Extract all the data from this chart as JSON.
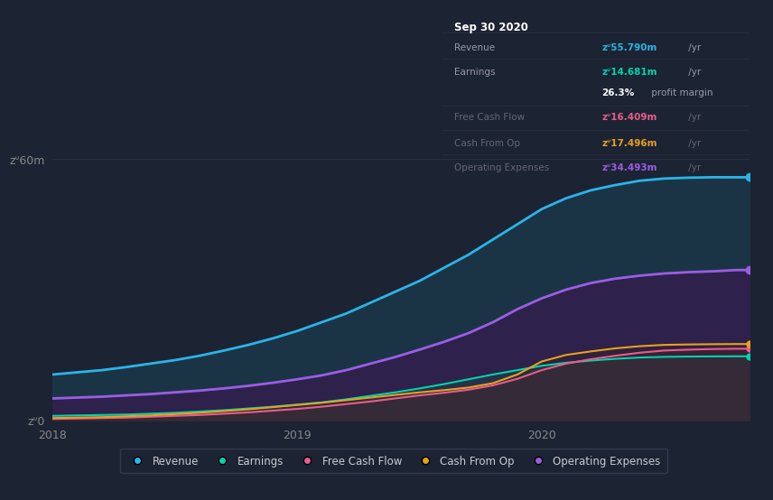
{
  "background_color": "#1c2333",
  "plot_bg_color": "#1c2333",
  "x_ticks_labels": [
    "2018",
    "2019",
    "2020"
  ],
  "x_ticks_pos": [
    0.0,
    1.0,
    2.0
  ],
  "ylabel_60": "zᐡ60m",
  "ylabel_0": "zᐡ0",
  "legend_items": [
    {
      "label": "Revenue",
      "color": "#29b5e8"
    },
    {
      "label": "Earnings",
      "color": "#00d4aa"
    },
    {
      "label": "Free Cash Flow",
      "color": "#e85d8a"
    },
    {
      "label": "Cash From Op",
      "color": "#e8a020"
    },
    {
      "label": "Operating Expenses",
      "color": "#9b5de5"
    }
  ],
  "tooltip_title": "Sep 30 2020",
  "tooltip_rows": [
    {
      "label": "Revenue",
      "value": "zᐡ55.790m",
      "suffix": " /yr",
      "value_color": "#29b5e8",
      "dim": false
    },
    {
      "label": "Earnings",
      "value": "zᐡ14.681m",
      "suffix": " /yr",
      "value_color": "#00d4aa",
      "dim": false
    },
    {
      "label": "",
      "value": "26.3%",
      "suffix": " profit margin",
      "value_color": "#ffffff",
      "dim": false
    },
    {
      "label": "Free Cash Flow",
      "value": "zᐡ16.409m",
      "suffix": " /yr",
      "value_color": "#e85d8a",
      "dim": true
    },
    {
      "label": "Cash From Op",
      "value": "zᐡ17.496m",
      "suffix": " /yr",
      "value_color": "#e8a020",
      "dim": true
    },
    {
      "label": "Operating Expenses",
      "value": "zᐡ34.493m",
      "suffix": " /yr",
      "value_color": "#9b5de5",
      "dim": true
    }
  ],
  "x_data": [
    0.0,
    0.1,
    0.2,
    0.3,
    0.4,
    0.5,
    0.6,
    0.7,
    0.8,
    0.9,
    1.0,
    1.1,
    1.2,
    1.3,
    1.4,
    1.5,
    1.6,
    1.7,
    1.8,
    1.9,
    2.0,
    2.1,
    2.2,
    2.3,
    2.4,
    2.5,
    2.6,
    2.7,
    2.8,
    2.85
  ],
  "revenue": [
    10.5,
    11.0,
    11.5,
    12.2,
    13.0,
    13.8,
    14.8,
    16.0,
    17.3,
    18.8,
    20.5,
    22.5,
    24.5,
    27.0,
    29.5,
    32.0,
    35.0,
    38.0,
    41.5,
    45.0,
    48.5,
    51.0,
    52.8,
    54.0,
    55.0,
    55.5,
    55.7,
    55.8,
    55.79,
    55.79
  ],
  "operating_expenses": [
    5.0,
    5.2,
    5.4,
    5.7,
    6.0,
    6.4,
    6.8,
    7.3,
    7.9,
    8.6,
    9.4,
    10.3,
    11.5,
    13.0,
    14.5,
    16.2,
    18.0,
    20.0,
    22.5,
    25.5,
    28.0,
    30.0,
    31.5,
    32.5,
    33.2,
    33.7,
    34.0,
    34.2,
    34.493,
    34.493
  ],
  "earnings": [
    1.0,
    1.1,
    1.2,
    1.3,
    1.5,
    1.7,
    2.0,
    2.3,
    2.7,
    3.1,
    3.6,
    4.1,
    4.8,
    5.6,
    6.4,
    7.3,
    8.3,
    9.4,
    10.5,
    11.5,
    12.5,
    13.2,
    13.7,
    14.1,
    14.4,
    14.55,
    14.62,
    14.66,
    14.681,
    14.681
  ],
  "free_cash_flow": [
    0.3,
    0.4,
    0.5,
    0.6,
    0.8,
    1.0,
    1.2,
    1.5,
    1.8,
    2.2,
    2.6,
    3.1,
    3.7,
    4.3,
    5.0,
    5.7,
    6.3,
    7.0,
    8.0,
    9.5,
    11.5,
    13.0,
    14.0,
    14.8,
    15.5,
    16.0,
    16.2,
    16.35,
    16.409,
    16.409
  ],
  "cash_from_op": [
    0.5,
    0.6,
    0.7,
    0.9,
    1.1,
    1.4,
    1.7,
    2.1,
    2.5,
    3.0,
    3.5,
    4.0,
    4.6,
    5.2,
    5.8,
    6.4,
    6.9,
    7.5,
    8.5,
    10.5,
    13.5,
    15.0,
    15.8,
    16.5,
    17.0,
    17.3,
    17.4,
    17.46,
    17.496,
    17.496
  ],
  "ylim": [
    0,
    65
  ],
  "grid_color": "#2a3045",
  "revenue_fill_color": "#1a4a5c",
  "opex_fill_color": "#3d2060",
  "earnings_fill_color": "#1a5050",
  "fcf_fill_color": "#5c1a35",
  "cashop_fill_color": "#3a2800"
}
